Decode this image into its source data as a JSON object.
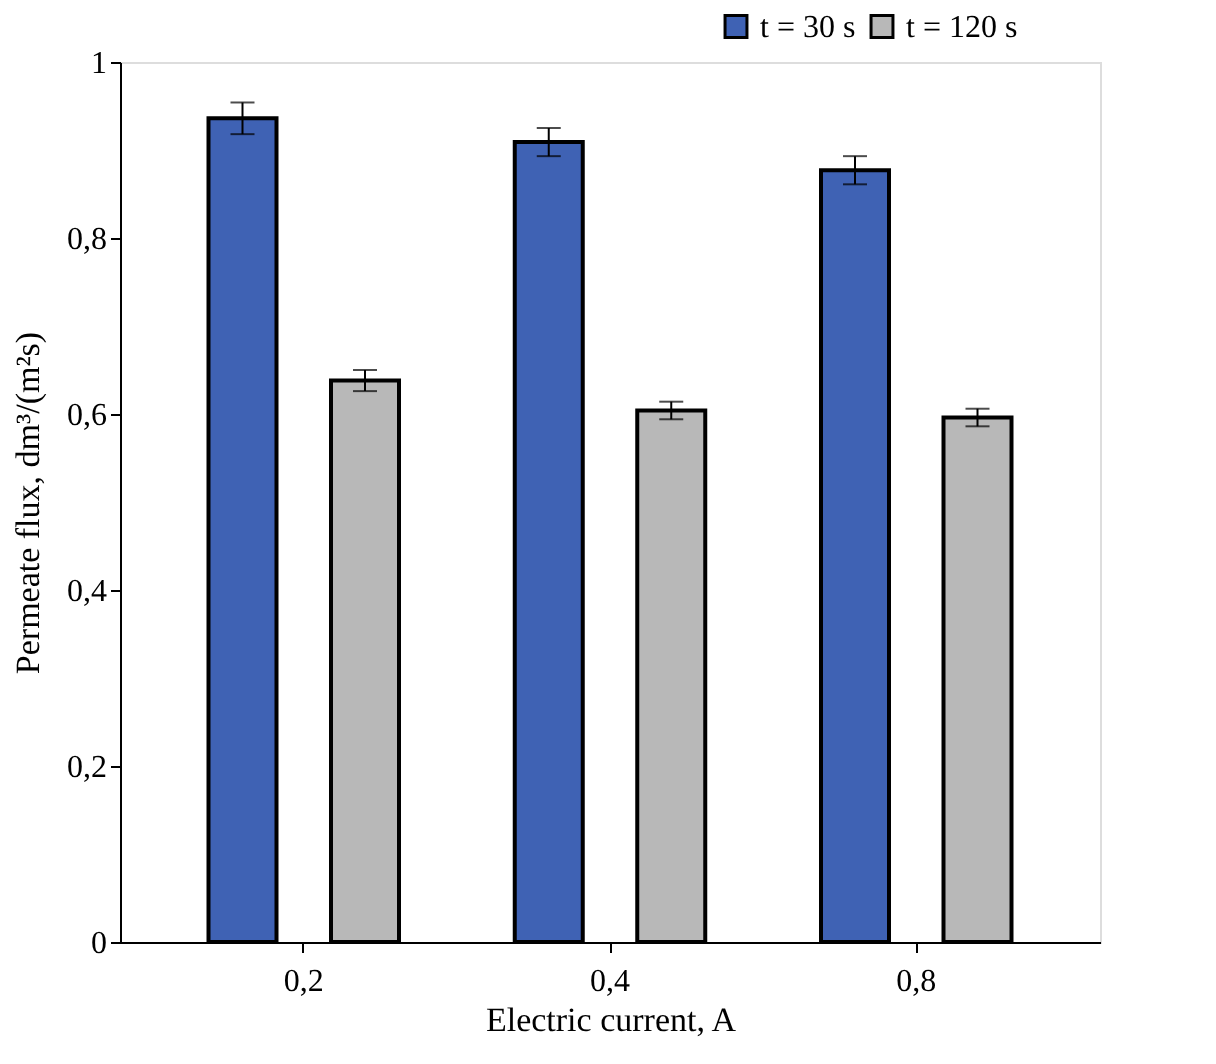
{
  "chart_data": {
    "type": "bar",
    "xlabel": "Electric current, A",
    "ylabel": "Permeate flux, dm³/(m²s)",
    "categories": [
      "0,2",
      "0,4",
      "0,8"
    ],
    "series": [
      {
        "name": "t = 30 s",
        "color": "#3f62b4",
        "values": [
          0.936,
          0.909,
          0.877
        ],
        "errors": [
          0.018,
          0.016,
          0.016
        ]
      },
      {
        "name": "t = 120 s",
        "color": "#b8b8b8",
        "values": [
          0.638,
          0.604,
          0.596
        ],
        "errors": [
          0.012,
          0.01,
          0.01
        ]
      }
    ],
    "ylim": [
      0,
      1
    ],
    "yticks": [
      0,
      {
        "value": 0.2,
        "label": "0,2"
      },
      {
        "value": 0.4,
        "label": "0,4"
      },
      {
        "value": 0.6,
        "label": "0,6"
      },
      {
        "value": 0.8,
        "label": "0,8"
      },
      1
    ],
    "grid": false,
    "legend": "top right"
  }
}
